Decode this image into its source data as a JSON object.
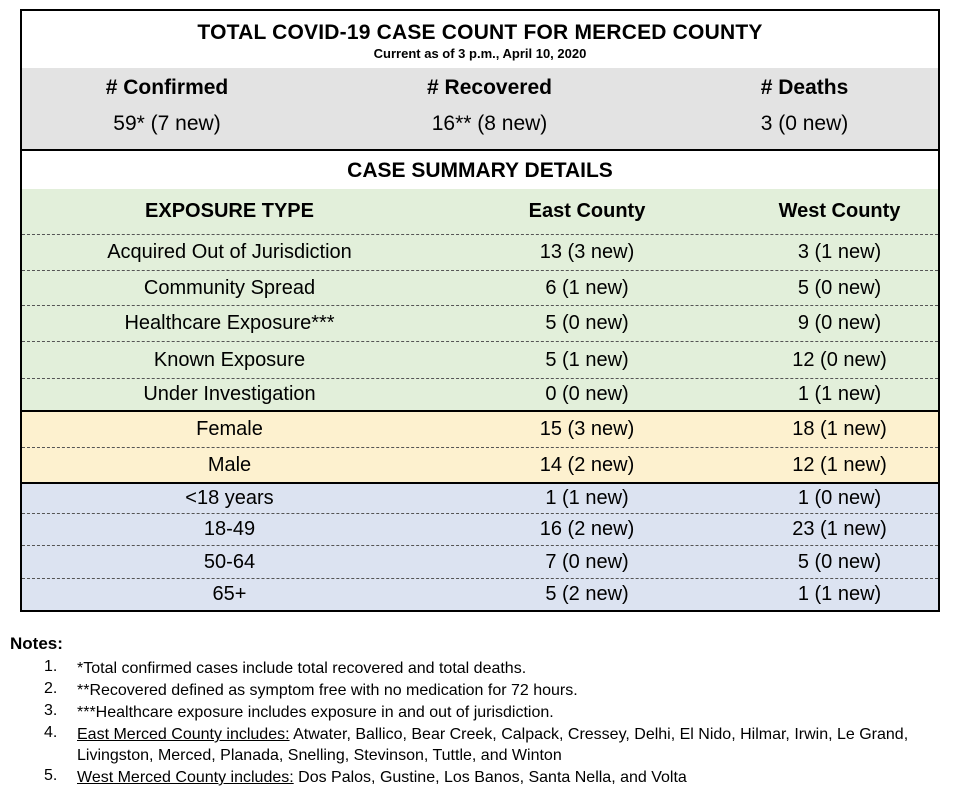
{
  "title": "TOTAL COVID-19 CASE COUNT FOR MERCED COUNTY",
  "subtitle": "Current as of 3 p.m., April 10, 2020",
  "totals": [
    {
      "label": "# Confirmed",
      "value": "59* (7 new)"
    },
    {
      "label": "# Recovered",
      "value": "16** (8 new)"
    },
    {
      "label": "# Deaths",
      "value": "3 (0 new)"
    }
  ],
  "summary_title": "CASE SUMMARY DETAILS",
  "columns": [
    "EXPOSURE TYPE",
    "East County",
    "West County"
  ],
  "exposure_rows": [
    [
      "Acquired Out of Jurisdiction",
      "13 (3 new)",
      "3 (1 new)"
    ],
    [
      "Community Spread",
      "6 (1 new)",
      "5 (0 new)"
    ],
    [
      "Healthcare Exposure***",
      "5 (0 new)",
      "9 (0 new)"
    ],
    [
      "Known Exposure",
      "5 (1 new)",
      "12 (0 new)"
    ],
    [
      "Under Investigation",
      "0 (0 new)",
      "1 (1 new)"
    ]
  ],
  "gender_rows": [
    [
      "Female",
      "15 (3 new)",
      "18 (1 new)"
    ],
    [
      "Male",
      "14 (2 new)",
      "12 (1 new)"
    ]
  ],
  "age_rows": [
    [
      "<18 years",
      "1 (1 new)",
      "1 (0 new)"
    ],
    [
      "18-49",
      "16 (2 new)",
      "23 (1 new)"
    ],
    [
      "50-64",
      "7 (0 new)",
      "5 (0 new)"
    ],
    [
      "65+",
      "5 (2 new)",
      "1 (1 new)"
    ]
  ],
  "notes": {
    "title": "Notes:",
    "items": [
      {
        "num": "1.",
        "lead": "",
        "text": "*Total confirmed cases include total recovered and total deaths."
      },
      {
        "num": "2.",
        "lead": "",
        "text": "**Recovered defined as symptom free with no medication for 72 hours."
      },
      {
        "num": "3.",
        "lead": "",
        "text": "***Healthcare exposure includes exposure in and out of jurisdiction."
      },
      {
        "num": "4.",
        "lead": "East Merced County includes:",
        "text": " Atwater, Ballico, Bear Creek, Calpack, Cressey, Delhi, El Nido, Hilmar, Irwin, Le Grand, Livingston, Merced, Planada, Snelling, Stevinson, Tuttle, and Winton"
      },
      {
        "num": "5.",
        "lead": "West Merced County includes:",
        "text": " Dos Palos, Gustine, Los Banos, Santa Nella, and Volta"
      }
    ]
  },
  "colors": {
    "totals_bg": "#e3e3e3",
    "exposure_bg": "#e2efda",
    "gender_bg": "#fdf1cf",
    "age_bg": "#dce3f1"
  }
}
